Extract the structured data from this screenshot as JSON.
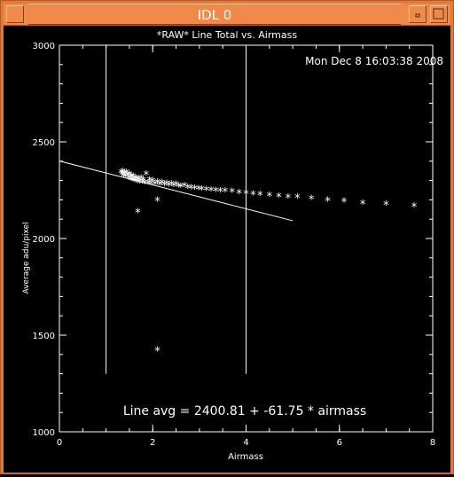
{
  "window": {
    "title": "IDL 0"
  },
  "chart_data": {
    "type": "scatter",
    "title": "*RAW* Line Total vs. Airmass",
    "timestamp": "Mon Dec  8 16:03:38 2008",
    "xlabel": "Airmass",
    "ylabel": "Average adu/pixel",
    "xlim": [
      0,
      8
    ],
    "ylim": [
      1000,
      3000
    ],
    "xticks": [
      "0",
      "2",
      "4",
      "6",
      "8"
    ],
    "yticks": [
      "1000",
      "1500",
      "2000",
      "2500",
      "3000"
    ],
    "grid": false,
    "series": [
      {
        "name": "",
        "marker": "*",
        "points": [
          [
            1.32,
            2340
          ],
          [
            1.34,
            2330
          ],
          [
            1.36,
            2345
          ],
          [
            1.38,
            2322
          ],
          [
            1.4,
            2335
          ],
          [
            1.42,
            2318
          ],
          [
            1.44,
            2340
          ],
          [
            1.46,
            2325
          ],
          [
            1.48,
            2310
          ],
          [
            1.5,
            2330
          ],
          [
            1.52,
            2305
          ],
          [
            1.54,
            2320
          ],
          [
            1.56,
            2300
          ],
          [
            1.58,
            2318
          ],
          [
            1.6,
            2298
          ],
          [
            1.62,
            2312
          ],
          [
            1.64,
            2295
          ],
          [
            1.66,
            2308
          ],
          [
            1.68,
            2292
          ],
          [
            1.7,
            2305
          ],
          [
            1.72,
            2290
          ],
          [
            1.75,
            2310
          ],
          [
            1.78,
            2288
          ],
          [
            1.8,
            2300
          ],
          [
            1.83,
            2285
          ],
          [
            1.86,
            2330
          ],
          [
            1.9,
            2284
          ],
          [
            1.93,
            2300
          ],
          [
            1.96,
            2282
          ],
          [
            2.0,
            2295
          ],
          [
            2.05,
            2280
          ],
          [
            2.1,
            2290
          ],
          [
            2.15,
            2277
          ],
          [
            2.2,
            2286
          ],
          [
            2.25,
            2275
          ],
          [
            2.3,
            2283
          ],
          [
            2.35,
            2272
          ],
          [
            2.4,
            2280
          ],
          [
            2.45,
            2270
          ],
          [
            2.5,
            2278
          ],
          [
            2.55,
            2268
          ],
          [
            2.6,
            2265
          ],
          [
            2.68,
            2270
          ],
          [
            2.75,
            2262
          ],
          [
            2.82,
            2260
          ],
          [
            2.9,
            2258
          ],
          [
            2.98,
            2255
          ],
          [
            3.05,
            2252
          ],
          [
            3.15,
            2250
          ],
          [
            3.25,
            2248
          ],
          [
            3.35,
            2246
          ],
          [
            3.45,
            2244
          ],
          [
            3.55,
            2242
          ],
          [
            3.7,
            2240
          ],
          [
            3.85,
            2235
          ],
          [
            4.0,
            2232
          ],
          [
            4.15,
            2228
          ],
          [
            4.3,
            2225
          ],
          [
            4.5,
            2220
          ],
          [
            4.7,
            2215
          ],
          [
            4.9,
            2212
          ],
          [
            5.1,
            2210
          ],
          [
            5.4,
            2205
          ],
          [
            5.75,
            2195
          ],
          [
            6.1,
            2190
          ],
          [
            6.5,
            2180
          ],
          [
            7.0,
            2175
          ],
          [
            7.6,
            2165
          ],
          [
            1.68,
            2135
          ],
          [
            2.1,
            2195
          ],
          [
            2.1,
            1420
          ]
        ]
      }
    ],
    "fit_line": {
      "intercept": 2400.81,
      "slope": -61.75,
      "x_range": [
        0,
        5
      ]
    },
    "vlines": [
      {
        "x": 1.0,
        "y_range": [
          1300,
          3000
        ]
      },
      {
        "x": 4.0,
        "y_range": [
          1300,
          3000
        ]
      }
    ],
    "annotation": "Line avg = 2400.81 + -61.75 * airmass"
  }
}
